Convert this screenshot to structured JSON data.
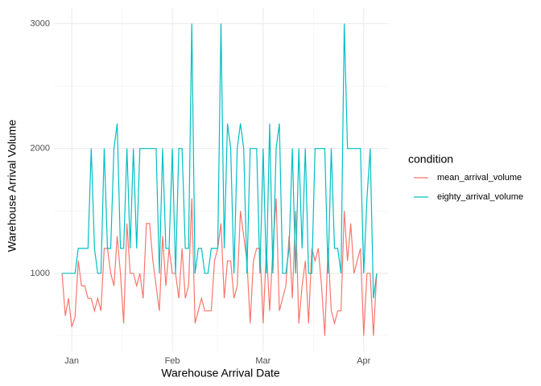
{
  "chart_data": {
    "type": "line",
    "x_label": "Warehouse Arrival Date",
    "y_label": "Warehouse Arrival Volume",
    "legend_title": "condition",
    "legend_position": "right",
    "grid": true,
    "x": [
      -3,
      -2,
      -1,
      0,
      1,
      2,
      3,
      4,
      5,
      6,
      7,
      8,
      9,
      10,
      11,
      12,
      13,
      14,
      15,
      16,
      17,
      18,
      19,
      20,
      21,
      22,
      23,
      24,
      25,
      26,
      27,
      28,
      29,
      30,
      31,
      32,
      33,
      34,
      35,
      36,
      37,
      38,
      39,
      40,
      41,
      42,
      43,
      44,
      45,
      46,
      47,
      48,
      49,
      50,
      51,
      52,
      53,
      54,
      55,
      56,
      57,
      58,
      59,
      60,
      61,
      62,
      63,
      64,
      65,
      66,
      67,
      68,
      69,
      70,
      71,
      72,
      73,
      74,
      75,
      76,
      77,
      78,
      79,
      80,
      81,
      82,
      83,
      84,
      85,
      86,
      87,
      88,
      89,
      90,
      91,
      92,
      93,
      94
    ],
    "xlim": [
      -5.5,
      97.5
    ],
    "xticks": [
      {
        "value": 0,
        "label": "Jan"
      },
      {
        "value": 31,
        "label": "Feb"
      },
      {
        "value": 59,
        "label": "Mar"
      },
      {
        "value": 90,
        "label": "Apr"
      }
    ],
    "ylim": [
      375,
      3125
    ],
    "yticks": [
      1000,
      2000,
      3000
    ],
    "series": [
      {
        "name": "mean_arrival_volume",
        "color": "#F8766D",
        "values": [
          1000,
          660,
          800,
          570,
          650,
          1100,
          900,
          900,
          800,
          800,
          700,
          800,
          700,
          1200,
          1200,
          1000,
          900,
          1300,
          1000,
          600,
          1400,
          1000,
          1000,
          900,
          1000,
          800,
          1400,
          1400,
          1100,
          900,
          700,
          1300,
          900,
          1200,
          1000,
          1000,
          800,
          1200,
          800,
          900,
          1600,
          600,
          700,
          800,
          700,
          700,
          700,
          1100,
          1200,
          1400,
          800,
          1100,
          1100,
          800,
          900,
          1500,
          1300,
          1100,
          600,
          1100,
          1200,
          1200,
          600,
          1200,
          700,
          1200,
          1600,
          700,
          800,
          900,
          1300,
          800,
          1500,
          600,
          900,
          1100,
          600,
          1200,
          1100,
          1200,
          900,
          500,
          1200,
          700,
          600,
          700,
          700,
          1500,
          1100,
          1400,
          1000,
          1100,
          1200,
          500,
          1000,
          1000,
          500,
          1000
        ]
      },
      {
        "name": "eighty_arrival_volume",
        "color": "#00BFC4",
        "values": [
          1000,
          1000,
          1000,
          1000,
          1000,
          1200,
          1200,
          1200,
          1200,
          2000,
          1200,
          1000,
          1000,
          2000,
          1200,
          1200,
          2000,
          2200,
          1200,
          1200,
          2000,
          1200,
          2000,
          1200,
          2000,
          2000,
          2000,
          2000,
          2000,
          2000,
          1000,
          2000,
          1200,
          1200,
          2000,
          1000,
          2000,
          2000,
          1200,
          1200,
          3000,
          1000,
          1200,
          1200,
          1000,
          1000,
          1200,
          1200,
          1200,
          3000,
          1200,
          2200,
          2000,
          1000,
          2000,
          2200,
          2000,
          1000,
          2000,
          2000,
          2000,
          1000,
          2000,
          1000,
          2200,
          1000,
          2000,
          2200,
          1000,
          1000,
          1200,
          2000,
          1000,
          2000,
          1200,
          2000,
          1000,
          1000,
          2000,
          2000,
          2000,
          2000,
          1000,
          2000,
          1200,
          1200,
          1000,
          3000,
          2000,
          2000,
          2000,
          2000,
          2000,
          1000,
          1600,
          2000,
          800,
          1000
        ]
      }
    ]
  }
}
